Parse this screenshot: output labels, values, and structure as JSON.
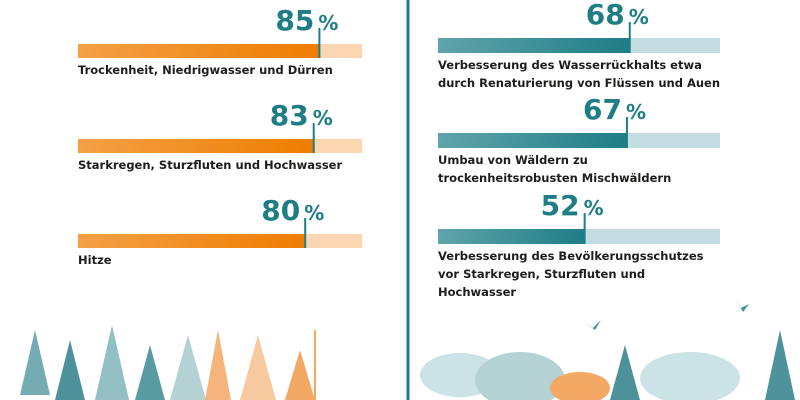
{
  "chart_data": [
    {
      "type": "bar",
      "orientation": "horizontal",
      "categories": [
        "Trockenheit, Niedrigwasser und Dürren",
        "Starkregen, Sturzfluten und Hochwasser",
        "Hitze"
      ],
      "values": [
        85,
        83,
        80
      ],
      "unit": "%",
      "xlim": [
        0,
        100
      ],
      "color": "#ee7d00",
      "track_color": "#fbd6b2",
      "label_color": "#1f7d86"
    },
    {
      "type": "bar",
      "orientation": "horizontal",
      "categories": [
        "Verbesserung des Wasserrückhalts etwa durch Renaturierung von Flüssen und Auen",
        "Umbau von Wäldern zu trockenheitsrobusten Mischwäldern",
        "Verbesserung des Bevölkerungsschutzes vor Starkregen, Sturzfluten und Hochwasser"
      ],
      "values": [
        68,
        67,
        52
      ],
      "unit": "%",
      "xlim": [
        0,
        100
      ],
      "color": "#1f7d86",
      "track_color": "#c3dde2",
      "label_color": "#1f7d86"
    }
  ]
}
